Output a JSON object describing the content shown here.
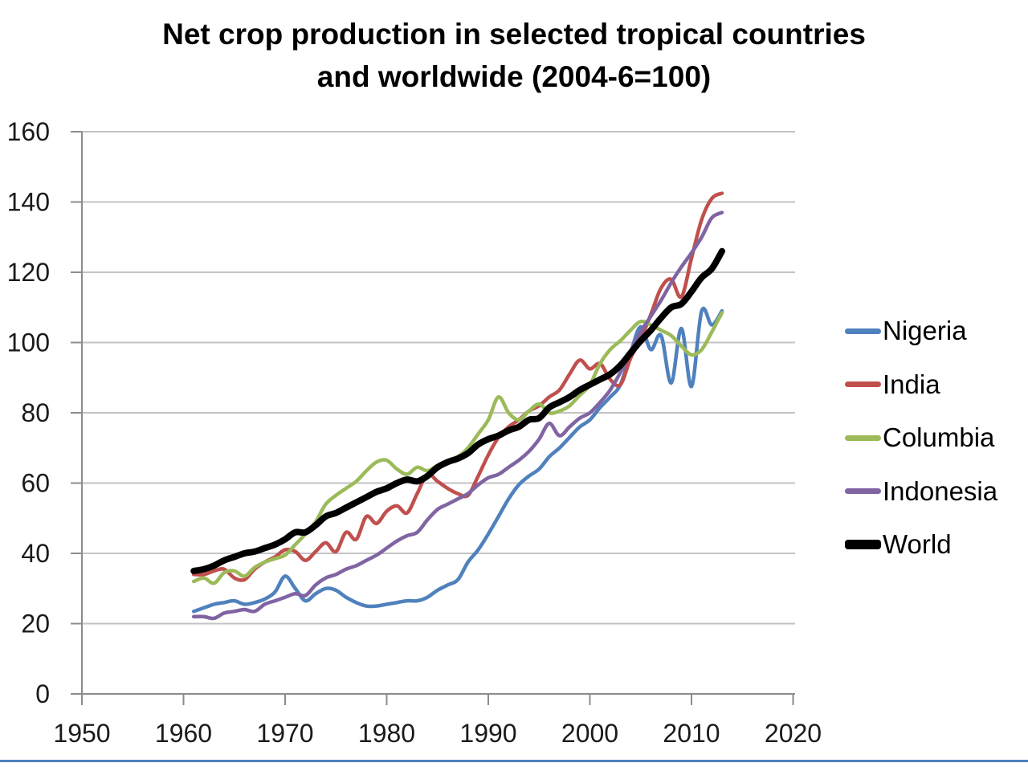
{
  "page": {
    "background": "#ffffff",
    "bottom_rule_color": "#4F81BD"
  },
  "chart_data": {
    "type": "line",
    "title_lines": [
      "Net crop production in selected tropical countries",
      "and worldwide (2004-6=100)"
    ],
    "x_axis": {
      "tick_labels": [
        "1950",
        "1960",
        "1970",
        "1980",
        "1990",
        "2000",
        "2010",
        "2020"
      ],
      "tick_years": [
        1950,
        1960,
        1970,
        1980,
        1990,
        2000,
        2010,
        2020
      ],
      "range": [
        1950,
        2020
      ]
    },
    "y_axis": {
      "tick_labels": [
        "0",
        "20",
        "40",
        "60",
        "80",
        "100",
        "120",
        "140",
        "160"
      ],
      "tick_values": [
        0,
        20,
        40,
        60,
        80,
        100,
        120,
        140,
        160
      ],
      "min": 0,
      "max": 160,
      "step": 20
    },
    "grid": true,
    "legend_position": "right",
    "style": {
      "grid_color": "#c3c3c3",
      "axis_color": "#8c8c8c",
      "tick_label_color": "#1a1a1a",
      "tick_font_size": 32
    },
    "series_start_year": 1961,
    "series_end_year": 2013,
    "series": [
      {
        "name": "Nigeria",
        "color": "#4F81BD",
        "line_width": 4.5,
        "values": [
          23.5,
          24.5,
          25.5,
          26,
          26.5,
          25.5,
          26,
          27,
          29,
          33.5,
          30,
          26.5,
          28.5,
          30,
          29.5,
          27.5,
          26,
          25,
          25,
          25.5,
          26,
          26.5,
          26.5,
          27.5,
          29.5,
          31,
          32.5,
          37.5,
          41,
          45.5,
          50.5,
          55.5,
          59.5,
          62,
          64,
          67.5,
          70,
          73,
          76,
          78,
          81.5,
          84.5,
          88,
          97,
          104.5,
          98,
          102,
          88.5,
          104,
          87.5,
          109,
          105,
          109
        ]
      },
      {
        "name": "India",
        "color": "#C0504D",
        "line_width": 4.5,
        "values": [
          34,
          34,
          35,
          35.5,
          33,
          32.5,
          35.5,
          37.5,
          39,
          41,
          40.5,
          38,
          40.5,
          43,
          40.5,
          46,
          44,
          50.5,
          48.5,
          52,
          53.5,
          51.5,
          57,
          62.5,
          60.5,
          58.5,
          57,
          56.5,
          62,
          68,
          73,
          76,
          78,
          80.5,
          82,
          84.5,
          86.5,
          91,
          95,
          92.5,
          94,
          89.5,
          88,
          95.5,
          101,
          108,
          115.5,
          118,
          113,
          124,
          135,
          141,
          142.5
        ]
      },
      {
        "name": "Columbia",
        "color": "#9BBB59",
        "line_width": 4.5,
        "values": [
          32,
          33,
          31.5,
          34.5,
          35,
          33.5,
          36,
          37.5,
          38.5,
          39.5,
          42.5,
          45.5,
          49,
          54,
          56.5,
          58.5,
          60.5,
          63.5,
          66,
          66.5,
          64,
          62.5,
          64.5,
          63.5,
          65,
          66,
          67.5,
          70,
          74,
          78,
          84.5,
          80,
          78,
          80.5,
          82.5,
          80,
          80.5,
          82,
          85,
          88,
          94,
          98,
          100.5,
          103.5,
          106,
          105,
          103.5,
          102,
          99,
          96.5,
          98,
          103,
          108.5
        ]
      },
      {
        "name": "Indonesia",
        "color": "#8064A2",
        "line_width": 4.5,
        "values": [
          22,
          22,
          21.5,
          23,
          23.5,
          24,
          23.5,
          25.5,
          26.5,
          27.5,
          28.5,
          28,
          31,
          33,
          34,
          35.5,
          36.5,
          38,
          39.5,
          41.5,
          43.5,
          45,
          46,
          49.5,
          52.5,
          54,
          55.5,
          57,
          59.5,
          61.5,
          62.5,
          64.5,
          66.5,
          69,
          72.5,
          77,
          73.5,
          76,
          78.5,
          80,
          83,
          86.5,
          91.5,
          97.5,
          103,
          107.5,
          112,
          117,
          121.5,
          125.5,
          130,
          135.5,
          137
        ]
      },
      {
        "name": "World",
        "color": "#000000",
        "line_width": 8,
        "values": [
          35,
          35.5,
          36.5,
          38,
          39,
          40,
          40.5,
          41.5,
          42.5,
          44,
          46,
          46,
          48,
          50.5,
          51.5,
          53,
          54.5,
          56,
          57.5,
          58.5,
          60,
          61,
          60.5,
          62,
          64.5,
          66,
          67,
          68.5,
          71,
          72.5,
          73.5,
          75,
          76,
          78,
          78.5,
          81.5,
          83,
          84.5,
          86.5,
          88,
          89.5,
          91,
          93.5,
          97,
          100.5,
          103.5,
          107,
          110,
          111,
          114.5,
          118.5,
          121,
          126
        ]
      }
    ]
  }
}
